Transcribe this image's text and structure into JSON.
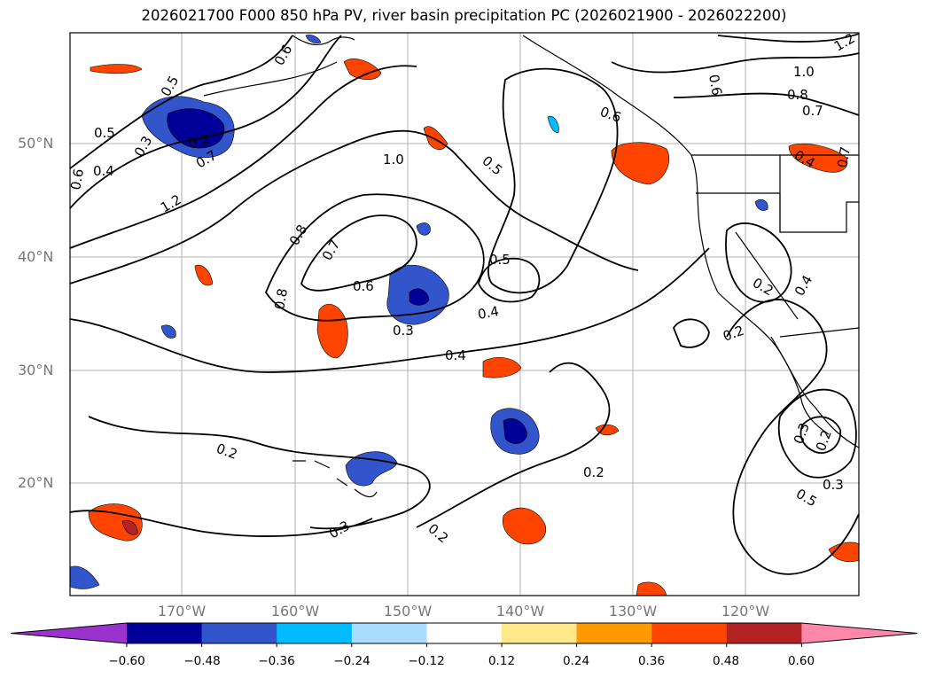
{
  "title": "2026021700 F000 850 hPa PV, river basin precipitation PC (2026021900 - 2026022200)",
  "lat_ticks": [
    "50°N",
    "40°N",
    "30°N",
    "20°N"
  ],
  "lon_ticks": [
    "170°W",
    "160°W",
    "150°W",
    "140°W",
    "130°W",
    "120°W"
  ],
  "colorbar": {
    "ticks": [
      "−0.60",
      "−0.48",
      "−0.36",
      "−0.24",
      "−0.12",
      "0.12",
      "0.24",
      "0.36",
      "0.48",
      "0.60"
    ],
    "colors": [
      "#9933cc",
      "#000099",
      "#3355cc",
      "#00bbff",
      "#aaddff",
      "#ffffff",
      "#ffe88a",
      "#ff9900",
      "#ff4400",
      "#b22222",
      "#ff88aa"
    ]
  },
  "contour_labels": [
    "1.2",
    "1.0",
    "0.8",
    "0.7",
    "0.6",
    "0.5",
    "0.4",
    "0.3",
    "0.2",
    "0.5",
    "0.7",
    "1.0",
    "1.2",
    "0.8",
    "0.8",
    "0.7",
    "0.6",
    "0.3",
    "0.4",
    "0.5",
    "0.5",
    "0.6",
    "0.4",
    "0.2",
    "0.3",
    "0.2",
    "0.2",
    "0.2",
    "0.2",
    "0.4",
    "0.3",
    "0.2",
    "0.3",
    "0.5",
    "0.4",
    "0.7",
    "0.6",
    "0.6"
  ],
  "colors": {
    "land_outline": "#000000",
    "grid": "#b0b0b0",
    "contour": "#000000"
  }
}
